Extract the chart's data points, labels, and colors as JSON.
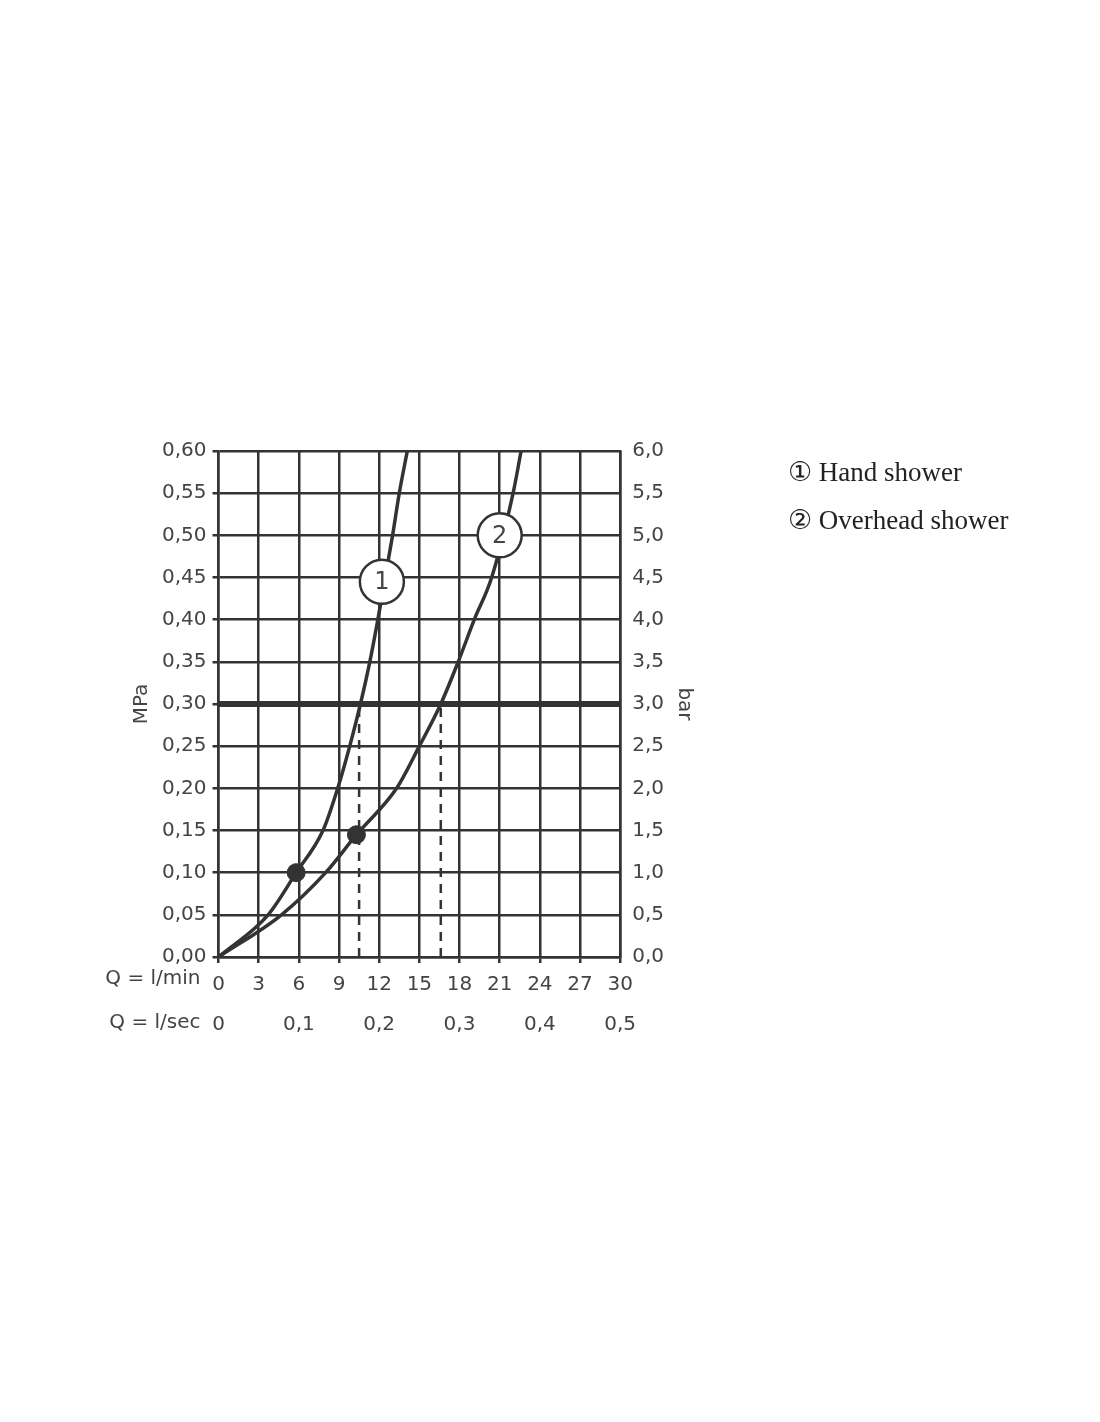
{
  "chart_data": {
    "type": "line",
    "xlabel": "Q = l/min",
    "ylabel": "MPa",
    "y2label": "bar",
    "x2label": "Q = l/sec",
    "xlim": [
      0,
      30
    ],
    "xticks": [
      0,
      3,
      6,
      9,
      12,
      15,
      18,
      21,
      24,
      27,
      30
    ],
    "x2lim": [
      0,
      0.5
    ],
    "x2ticks": [
      0,
      {
        "value": 0.1,
        "label": "0,1"
      },
      {
        "value": 0.2,
        "label": "0,2"
      },
      {
        "value": 0.3,
        "label": "0,3"
      },
      {
        "value": 0.4,
        "label": "0,4"
      },
      {
        "value": 0.5,
        "label": "0,5"
      }
    ],
    "ylim": [
      0,
      0.6
    ],
    "yticks": [
      {
        "value": 0,
        "label": "0,00"
      },
      {
        "value": 0.05,
        "label": "0,05"
      },
      {
        "value": 0.1,
        "label": "0,10"
      },
      {
        "value": 0.15,
        "label": "0,15"
      },
      {
        "value": 0.2,
        "label": "0,20"
      },
      {
        "value": 0.25,
        "label": "0,25"
      },
      {
        "value": 0.3,
        "label": "0,30"
      },
      {
        "value": 0.35,
        "label": "0,35"
      },
      {
        "value": 0.4,
        "label": "0,40"
      },
      {
        "value": 0.45,
        "label": "0,45"
      },
      {
        "value": 0.5,
        "label": "0,50"
      },
      {
        "value": 0.55,
        "label": "0,55"
      },
      {
        "value": 0.6,
        "label": "0,60"
      }
    ],
    "y2lim": [
      0,
      6
    ],
    "y2ticks": [
      {
        "value": 0,
        "label": "0,0"
      },
      {
        "value": 0.5,
        "label": "0,5"
      },
      {
        "value": 1,
        "label": "1,0"
      },
      {
        "value": 1.5,
        "label": "1,5"
      },
      {
        "value": 2,
        "label": "2,0"
      },
      {
        "value": 2.5,
        "label": "2,5"
      },
      {
        "value": 3,
        "label": "3,0"
      },
      {
        "value": 3.5,
        "label": "3,5"
      },
      {
        "value": 4,
        "label": "4,0"
      },
      {
        "value": 4.5,
        "label": "4,5"
      },
      {
        "value": 5,
        "label": "5,0"
      },
      {
        "value": 5.5,
        "label": "5,5"
      },
      {
        "value": 6,
        "label": "6,0"
      }
    ],
    "grid": true,
    "legend": "right",
    "series": [
      {
        "name": "① Hand shower",
        "color": "#333333",
        "x": [
          0,
          3.7,
          5.8,
          7.8,
          8.9,
          9.8,
          10.6,
          11.3,
          11.9,
          13.0,
          13.5,
          14.1
        ],
        "values": [
          0,
          0.05,
          0.1,
          0.15,
          0.2,
          0.25,
          0.3,
          0.35,
          0.4,
          0.5,
          0.55,
          0.6
        ]
      },
      {
        "name": "② Overhead shower",
        "color": "#333333",
        "x": [
          0,
          4.7,
          8.0,
          10.3,
          13.3,
          15.0,
          16.6,
          17.9,
          19.1,
          20.4,
          22.0,
          22.6
        ],
        "values": [
          0,
          0.05,
          0.1,
          0.145,
          0.2,
          0.25,
          0.3,
          0.35,
          0.4,
          0.45,
          0.55,
          0.6
        ]
      },
      {
        "type": "scatter",
        "marker": "circle",
        "color": "#333333",
        "x": [
          5.8,
          10.3
        ],
        "values": [
          0.1,
          0.145
        ]
      }
    ],
    "ref_lines": [
      {
        "axis": "y",
        "value": 0.3,
        "color": "#333333",
        "line_style": "solid"
      },
      {
        "axis": "x",
        "value": 10.5,
        "color": "#333333",
        "line_style": "dashed"
      },
      {
        "axis": "x",
        "value": 16.6,
        "color": "#333333",
        "line_style": "dashed"
      }
    ],
    "annotations": [
      {
        "text": "1",
        "x": 12.2,
        "y": 0.445
      },
      {
        "text": "2",
        "x": 21.0,
        "y": 0.5
      }
    ]
  }
}
